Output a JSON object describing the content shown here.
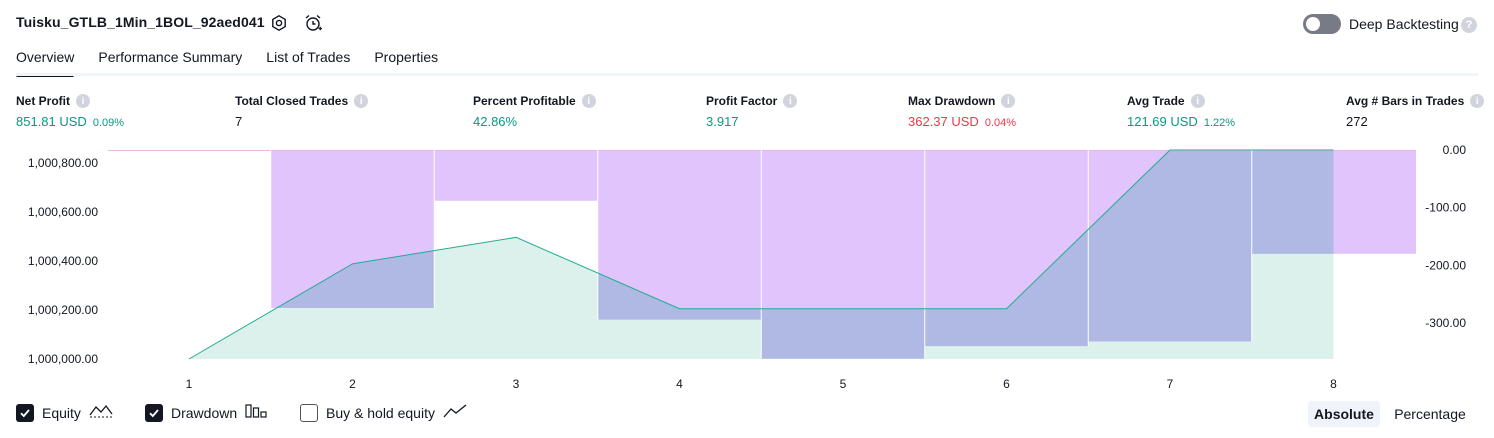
{
  "header": {
    "title": "Tuisku_GTLB_1Min_1BOL_92aed041",
    "deep_backtesting_label": "Deep Backtesting",
    "help_glyph": "?"
  },
  "tabs": [
    {
      "label": "Overview"
    },
    {
      "label": "Performance Summary"
    },
    {
      "label": "List of Trades"
    },
    {
      "label": "Properties"
    }
  ],
  "info_glyph": "i",
  "metrics": [
    {
      "label": "Net Profit",
      "value": "851.81 USD",
      "pct": "0.09%",
      "color": "#089981"
    },
    {
      "label": "Total Closed Trades",
      "value": "7",
      "pct": "",
      "color": "#131722"
    },
    {
      "label": "Percent Profitable",
      "value": "42.86%",
      "pct": "",
      "color": "#089981"
    },
    {
      "label": "Profit Factor",
      "value": "3.917",
      "pct": "",
      "color": "#089981"
    },
    {
      "label": "Max Drawdown",
      "value": "362.37 USD",
      "pct": "0.04%",
      "color": "#f23645"
    },
    {
      "label": "Avg Trade",
      "value": "121.69 USD",
      "pct": "1.22%",
      "color": "#089981"
    },
    {
      "label": "Avg # Bars in Trades",
      "value": "272",
      "pct": "",
      "color": "#131722"
    }
  ],
  "chart_data": {
    "type": "area",
    "x": [
      1,
      2,
      3,
      4,
      5,
      6,
      7,
      8
    ],
    "x_tick_labels": [
      "1",
      "2",
      "3",
      "4",
      "5",
      "6",
      "7",
      "8"
    ],
    "series": [
      {
        "name": "Equity",
        "axis": "left",
        "values": [
          1000000,
          1000388,
          1000496,
          1000205,
          1000205,
          1000205,
          1000852,
          1000852
        ]
      },
      {
        "name": "Drawdown",
        "axis": "right",
        "type": "bar",
        "values": [
          0,
          -274,
          -88,
          -294,
          -362,
          -340,
          -332,
          -180
        ]
      }
    ],
    "left_axis": {
      "ylim": [
        1000000,
        1000852
      ],
      "tick_values": [
        1000000,
        1000200,
        1000400,
        1000600,
        1000800
      ],
      "tick_labels": [
        "1,000,000.00",
        "1,000,200.00",
        "1,000,400.00",
        "1,000,600.00",
        "1,000,800.00"
      ]
    },
    "right_axis": {
      "ylim": [
        -362.37,
        0
      ],
      "tick_values": [
        0,
        -100,
        -200,
        -300
      ],
      "tick_labels": [
        "0.00",
        "-100.00",
        "-200.00",
        "-300.00"
      ]
    },
    "colors": {
      "equity_line": "#22ab94",
      "equity_fill": "#dcf1ec",
      "drawdown_fill": "#e1c4fc",
      "overlap_fill": "#b0b9e3",
      "baseline": "#e8b6e8"
    },
    "grid": false
  },
  "legend": {
    "equity": {
      "label": "Equity",
      "checked": true
    },
    "drawdown": {
      "label": "Drawdown",
      "checked": true
    },
    "buyhold": {
      "label": "Buy & hold equity",
      "checked": false
    }
  },
  "view_toggle": {
    "absolute": "Absolute",
    "percentage": "Percentage",
    "selected": "Absolute"
  }
}
